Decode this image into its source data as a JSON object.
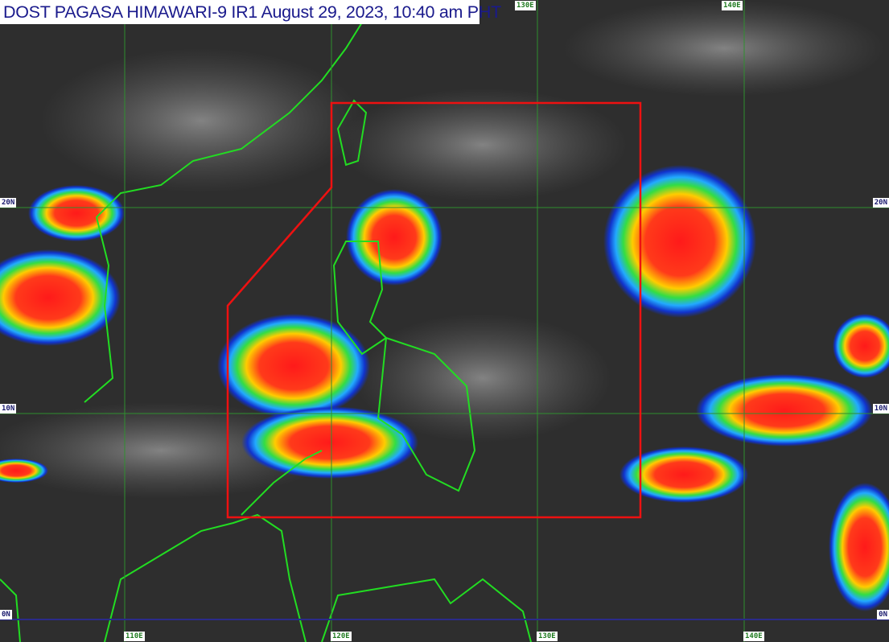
{
  "title": "DOST PAGASA HIMAWARI-9 IR1 August 29, 2023, 10:40 am PHT",
  "longitude_labels": [
    "110E",
    "120E",
    "130E",
    "140E"
  ],
  "latitude_labels": [
    "20N",
    "10N",
    "0N"
  ],
  "colors": {
    "grid": "#2f8f2f",
    "equator": "#2a2a8a",
    "coastline": "#22dd22",
    "par_boundary": "#ee1111",
    "title_text": "#1a1a8c"
  }
}
